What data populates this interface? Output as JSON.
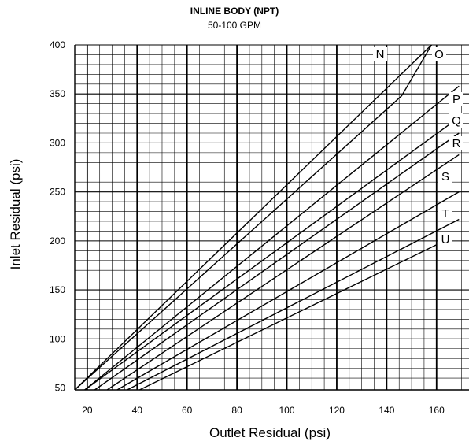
{
  "chart_data": {
    "type": "line",
    "title": "INLINE BODY (NPT)",
    "subtitle": "50-100 GPM",
    "xlabel": "Outlet Residual (psi)",
    "ylabel": "Inlet Residual (psi)",
    "xlim": [
      15,
      173
    ],
    "ylim": [
      48,
      400
    ],
    "xticks": [
      20,
      40,
      60,
      80,
      100,
      120,
      140,
      160
    ],
    "yticks": [
      50,
      100,
      150,
      200,
      250,
      300,
      350,
      400
    ],
    "grid": true,
    "series": [
      {
        "name": "N",
        "x": [
          15,
          158
        ],
        "y": [
          48,
          400
        ]
      },
      {
        "name": "O",
        "x": [
          15,
          146,
          158
        ],
        "y": [
          48,
          348,
          400
        ]
      },
      {
        "name": "P",
        "x": [
          19,
          169
        ],
        "y": [
          48,
          358
        ]
      },
      {
        "name": "Q",
        "x": [
          19,
          169
        ],
        "y": [
          48,
          326
        ]
      },
      {
        "name": "R",
        "x": [
          23,
          169
        ],
        "y": [
          48,
          310
        ]
      },
      {
        "name": "S",
        "x": [
          28,
          169
        ],
        "y": [
          48,
          288
        ]
      },
      {
        "name": "T",
        "x": [
          32,
          169
        ],
        "y": [
          48,
          250
        ]
      },
      {
        "name": "U",
        "x": [
          36,
          169
        ],
        "y": [
          48,
          222
        ]
      },
      {
        "name": "",
        "x": [
          41,
          160
        ],
        "y": [
          48,
          196
        ]
      }
    ]
  }
}
